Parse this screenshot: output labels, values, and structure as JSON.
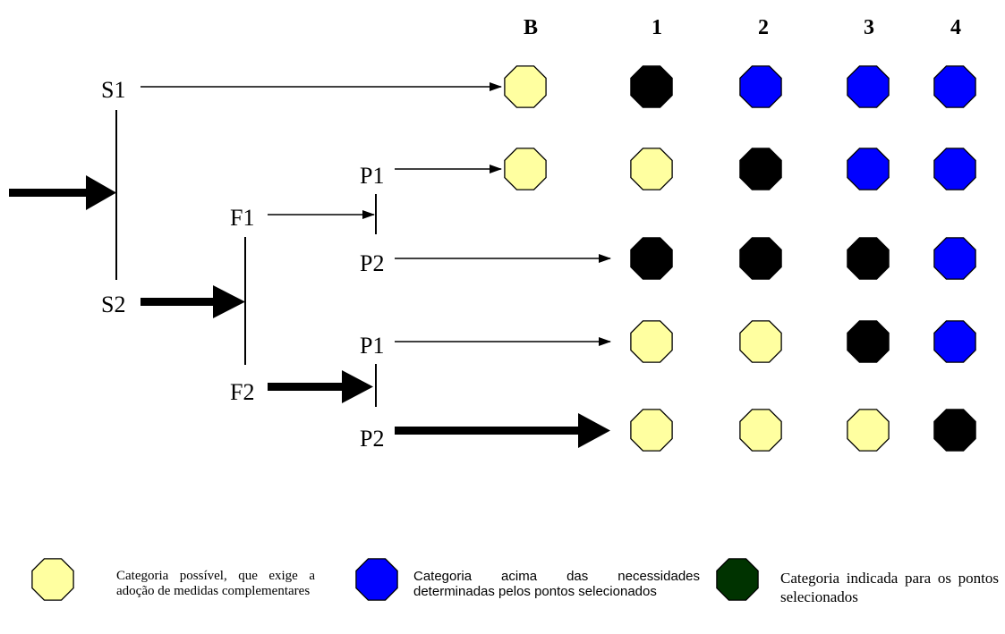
{
  "colors": {
    "possible": "#ffffa0",
    "above": "#0000ff",
    "indicated": "#000000",
    "legend_indicated": "#003300"
  },
  "diagram": {
    "columns": [
      "B",
      "1",
      "2",
      "3",
      "4"
    ],
    "branch_labels": {
      "s1": "S1",
      "s2": "S2",
      "f1": "F1",
      "f2": "F2",
      "p1_upper": "P1",
      "p2_upper": "P2",
      "p1_lower": "P1",
      "p2_lower": "P2"
    },
    "rows": [
      {
        "cells": [
          "possible",
          "indicated",
          "above",
          "above",
          "above"
        ]
      },
      {
        "cells": [
          "possible",
          "possible",
          "indicated",
          "above",
          "above"
        ]
      },
      {
        "cells": [
          null,
          "indicated",
          "indicated",
          "indicated",
          "above"
        ]
      },
      {
        "cells": [
          null,
          "possible",
          "possible",
          "indicated",
          "above"
        ]
      },
      {
        "cells": [
          null,
          "possible",
          "possible",
          "possible",
          "indicated"
        ]
      }
    ]
  },
  "legend": {
    "possible": "Categoria possível, que exige a adoção de medidas complementares",
    "above": "Categoria acima das necessidades determinadas pelos pontos selecionados",
    "indicated": "Categoria indicada para os pontos selecionados"
  }
}
